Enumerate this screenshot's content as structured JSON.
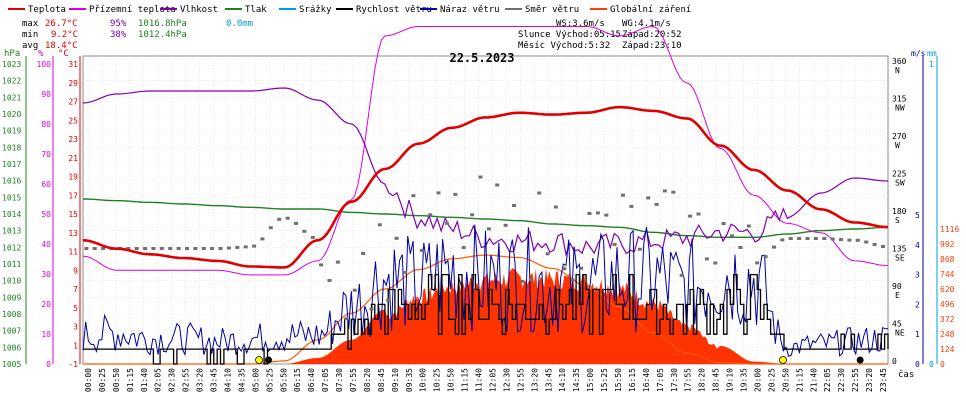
{
  "chart_data": {
    "type": "line",
    "title": "22.5.2023",
    "time_unit": "čas",
    "legend": [
      {
        "name": "Teplota",
        "color": "#e00000"
      },
      {
        "name": "Přízemní teplota",
        "color": "#dd00dd"
      },
      {
        "name": "Vlhkost",
        "color": "#8000b0"
      },
      {
        "name": "Tlak",
        "color": "#208020"
      },
      {
        "name": "Srážky",
        "color": "#00a0d0"
      },
      {
        "name": "Rychlost větru",
        "color": "#000000"
      },
      {
        "name": "Náraz větru",
        "color": "#0000a0"
      },
      {
        "name": "Směr větru",
        "color": "#707070"
      },
      {
        "name": "Globální záření",
        "color": "#ff4000"
      }
    ],
    "stats": {
      "max": {
        "label": "max",
        "temp": "26.7°C",
        "hum": "95%",
        "press": "1016.8hPa",
        "rain": "0.0mm"
      },
      "min": {
        "label": "min",
        "temp": "9.2°C",
        "hum": "38%",
        "press": "1012.4hPa"
      },
      "avg": {
        "label": "avg",
        "temp": "18.4°C"
      }
    },
    "info": {
      "ws": "WS:3.6m/s",
      "wg": "WG:4.1m/s",
      "sun": "Slunce Východ:05:15",
      "sun_set": "Západ:20:52",
      "moon": "Měsíc Východ:5:32",
      "moon_set": "Západ:23:10"
    },
    "axes": {
      "pressure": {
        "unit": "hPa",
        "color": "#208020",
        "ticks": [
          "1023",
          "1022",
          "1021",
          "1020",
          "1019",
          "1018",
          "1017",
          "1016",
          "1015",
          "1014",
          "1013",
          "1012",
          "1011",
          "1010",
          "1009",
          "1008",
          "1007",
          "1006",
          "1005"
        ]
      },
      "humidity": {
        "unit": "%",
        "color": "#dd00dd",
        "ticks": [
          "100",
          "90",
          "80",
          "70",
          "60",
          "50",
          "40",
          "30",
          "20",
          "10",
          "0"
        ]
      },
      "temperature": {
        "unit": "°C",
        "color": "#e00000",
        "ticks": [
          "31",
          "29",
          "27",
          "25",
          "23",
          "21",
          "19",
          "17",
          "15",
          "13",
          "11",
          "9",
          "7",
          "5",
          "3",
          "1",
          "-1"
        ]
      },
      "direction": {
        "unit": "",
        "color": "#707070",
        "ticks": [
          {
            "deg": "360",
            "dir": "N"
          },
          {
            "deg": "315",
            "dir": "NW"
          },
          {
            "deg": "270",
            "dir": "W"
          },
          {
            "deg": "225",
            "dir": "SW"
          },
          {
            "deg": "180",
            "dir": "S"
          },
          {
            "deg": "135",
            "dir": "SE"
          },
          {
            "deg": "90",
            "dir": "E"
          },
          {
            "deg": "45",
            "dir": "NE"
          },
          {
            "deg": "0",
            "dir": ""
          }
        ]
      },
      "wind": {
        "unit": "m/s",
        "color": "#0000a0",
        "ticks": [
          "5",
          "4",
          "3",
          "2",
          "1",
          "0"
        ]
      },
      "rain": {
        "unit": "mm",
        "color": "#00a0d0",
        "ticks": [
          "1",
          "0"
        ]
      },
      "radiation": {
        "unit": "",
        "color": "#ff4000",
        "ticks": [
          "1116",
          "992",
          "868",
          "744",
          "620",
          "496",
          "372",
          "248",
          "124",
          "0"
        ]
      }
    },
    "x_ticks": [
      "00:00",
      "00:25",
      "00:50",
      "01:15",
      "01:40",
      "02:05",
      "02:30",
      "02:55",
      "03:20",
      "03:45",
      "04:10",
      "04:35",
      "05:00",
      "05:25",
      "05:50",
      "06:15",
      "06:40",
      "07:05",
      "07:30",
      "07:55",
      "08:20",
      "08:45",
      "09:10",
      "09:35",
      "10:00",
      "10:25",
      "10:50",
      "11:15",
      "11:40",
      "12:05",
      "12:30",
      "12:55",
      "13:20",
      "13:45",
      "14:10",
      "14:35",
      "15:00",
      "15:25",
      "15:50",
      "16:15",
      "16:40",
      "17:05",
      "17:30",
      "17:55",
      "18:20",
      "18:45",
      "19:10",
      "19:35",
      "20:00",
      "20:25",
      "20:50",
      "21:15",
      "21:40",
      "22:05",
      "22:30",
      "22:55",
      "23:20",
      "23:45"
    ],
    "series_hourly": {
      "hours": [
        0,
        1,
        2,
        3,
        4,
        5,
        6,
        7,
        8,
        9,
        10,
        11,
        12,
        13,
        14,
        15,
        16,
        17,
        18,
        19,
        20,
        21,
        22,
        23,
        24
      ],
      "temperature_c": [
        12.2,
        11.3,
        10.7,
        10.3,
        10.0,
        9.4,
        9.3,
        12.2,
        16.3,
        19.8,
        22.5,
        24.2,
        25.3,
        25.8,
        25.6,
        25.8,
        26.4,
        26.0,
        25.2,
        22.3,
        19.7,
        17.5,
        15.5,
        14.1,
        13.6
      ],
      "ground_temperature_c": [
        10.5,
        9.0,
        9.0,
        9.0,
        9.0,
        8.5,
        8.5,
        10.0,
        16.5,
        34.0,
        35.0,
        35.0,
        35.0,
        35.0,
        35.0,
        35.0,
        34.0,
        35.0,
        29.0,
        22.0,
        17.0,
        14.0,
        13.0,
        10.0,
        9.5
      ],
      "humidity_pct": [
        87,
        90,
        91,
        91,
        91,
        91,
        92,
        88,
        80,
        60,
        49,
        45,
        42,
        41,
        41,
        39,
        40,
        41,
        42,
        44,
        44,
        49,
        57,
        62,
        61
      ],
      "pressure_hpa": [
        1014.9,
        1014.8,
        1014.7,
        1014.6,
        1014.5,
        1014.4,
        1014.3,
        1014.3,
        1014.1,
        1014.0,
        1013.9,
        1013.8,
        1013.7,
        1013.6,
        1013.4,
        1013.3,
        1013.2,
        1012.9,
        1012.7,
        1012.6,
        1012.6,
        1012.8,
        1013.0,
        1013.1,
        1013.2
      ],
      "wind_speed_ms": [
        0.5,
        0.6,
        0.4,
        0.5,
        0.4,
        0.3,
        0.5,
        0.5,
        1.2,
        2.0,
        2.0,
        2.3,
        2.2,
        2.0,
        2.0,
        2.0,
        2.2,
        2.0,
        1.8,
        2.0,
        2.2,
        0.5,
        0.5,
        0.6,
        0.6
      ],
      "wind_gust_ms": [
        1.0,
        1.1,
        0.9,
        0.9,
        0.8,
        0.9,
        1.0,
        1.0,
        2.0,
        3.0,
        2.8,
        3.3,
        3.0,
        3.0,
        2.8,
        2.8,
        3.0,
        3.0,
        2.7,
        3.2,
        3.0,
        0.6,
        0.7,
        0.8,
        0.9
      ],
      "wind_direction_deg": [
        138,
        138,
        138,
        138,
        138,
        140,
        175,
        150,
        105,
        125,
        150,
        165,
        170,
        150,
        160,
        150,
        160,
        165,
        150,
        160,
        120,
        150,
        150,
        148,
        140
      ],
      "radiation_wm2": [
        0,
        0,
        0,
        0,
        0,
        0,
        0,
        50,
        200,
        450,
        620,
        720,
        780,
        800,
        790,
        760,
        700,
        560,
        350,
        150,
        20,
        0,
        0,
        0,
        0
      ],
      "clear_sky_radiation_wm2": [
        0,
        0,
        0,
        0,
        0,
        0,
        25,
        200,
        420,
        620,
        780,
        870,
        900,
        880,
        790,
        650,
        470,
        260,
        90,
        10,
        0,
        0,
        0,
        0,
        0
      ]
    }
  }
}
